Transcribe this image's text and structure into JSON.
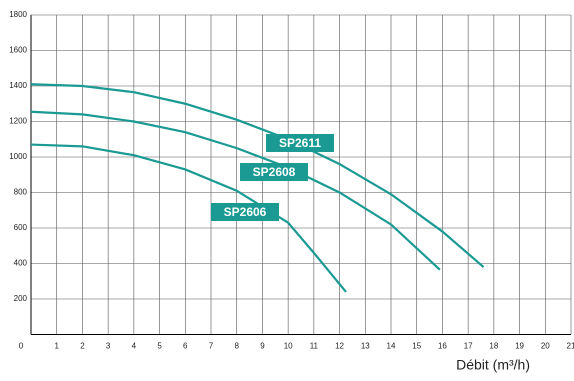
{
  "chart_data": {
    "type": "line",
    "x_label": "Débit (m³/h)",
    "xlim": [
      0,
      21
    ],
    "xticks": [
      0,
      1,
      2,
      3,
      4,
      5,
      6,
      7,
      8,
      9,
      10,
      11,
      12,
      13,
      14,
      15,
      16,
      17,
      18,
      19,
      20,
      21
    ],
    "ylim": [
      0,
      1800
    ],
    "yticks": [
      200,
      400,
      600,
      800,
      1000,
      1200,
      1400,
      1600,
      1800
    ],
    "grid": true,
    "series": [
      {
        "name": "SP2611",
        "color": "#1a9a93",
        "x": [
          0,
          2,
          4,
          6,
          8,
          10,
          12,
          14,
          16,
          17.6
        ],
        "values": [
          1410,
          1400,
          1365,
          1300,
          1210,
          1100,
          960,
          790,
          580,
          380
        ]
      },
      {
        "name": "SP2608",
        "color": "#1a9a93",
        "x": [
          0,
          2,
          4,
          6,
          8,
          10,
          12,
          14,
          15.9
        ],
        "values": [
          1255,
          1240,
          1200,
          1140,
          1050,
          940,
          800,
          620,
          365
        ]
      },
      {
        "name": "SP2606",
        "color": "#1a9a93",
        "x": [
          0,
          2,
          4,
          6,
          8,
          10,
          11,
          12.25
        ],
        "values": [
          1070,
          1060,
          1010,
          930,
          810,
          630,
          460,
          240
        ]
      }
    ]
  }
}
